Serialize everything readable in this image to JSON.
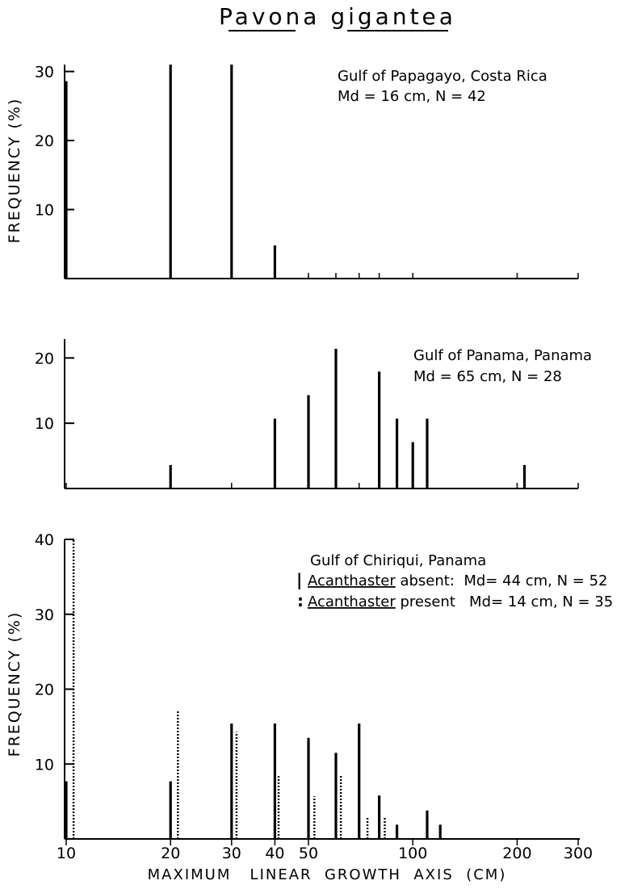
{
  "title": "Pavona gigantea",
  "chart_data": [
    {
      "type": "bar",
      "x_scale": "log",
      "annotations": [
        "Gulf of Papagayo, Costa Rica",
        "Md = 16 cm,  N = 42"
      ],
      "ylabel": "FREQUENCY  (%)",
      "yticks": [
        10,
        20,
        30
      ],
      "ylim": [
        0,
        33
      ],
      "xticks_minor": [
        10,
        20,
        30,
        40,
        50,
        60,
        70,
        80,
        100,
        200,
        300
      ],
      "series": [
        {
          "style": "solid",
          "x": [
            10,
            20,
            30,
            40
          ],
          "values": [
            28.6,
            31.0,
            31.0,
            4.8
          ]
        }
      ]
    },
    {
      "type": "bar",
      "x_scale": "log",
      "annotations": [
        "Gulf of Panama, Panama",
        "Md = 65 cm,  N = 28"
      ],
      "yticks": [
        10,
        20
      ],
      "ylim": [
        0,
        23
      ],
      "xticks_minor": [
        10,
        20,
        30,
        40,
        50,
        60,
        70,
        80,
        90,
        100,
        200,
        300
      ],
      "series": [
        {
          "style": "solid",
          "x": [
            20,
            40,
            50,
            60,
            80,
            90,
            100,
            110,
            210
          ],
          "values": [
            3.6,
            10.7,
            14.3,
            21.4,
            17.9,
            10.7,
            7.1,
            10.7,
            3.6
          ]
        }
      ]
    },
    {
      "type": "bar",
      "x_scale": "log",
      "annotations": [
        "Gulf of Chiriqui, Panama"
      ],
      "ylabel": "FREQUENCY  (%)",
      "xlabel": "MAXIMUM   LINEAR  GROWTH  AXIS  (CM)",
      "yticks": [
        10,
        20,
        30,
        40
      ],
      "ylim": [
        0,
        41
      ],
      "xticks": [
        10,
        20,
        30,
        40,
        50,
        100,
        200,
        300
      ],
      "xtick_labels": [
        "10",
        "20",
        "30",
        "40",
        "50",
        "100",
        "200",
        "300"
      ],
      "legend": [
        {
          "symbol": "|",
          "name": "Acanthaster",
          "text": " absent:  Md= 44 cm, N = 52"
        },
        {
          "symbol": ":",
          "name": "Acanthaster",
          "text": " present   Md= 14 cm, N = 35"
        }
      ],
      "series": [
        {
          "name": "Acanthaster absent",
          "style": "solid",
          "x": [
            10,
            20,
            30,
            40,
            50,
            60,
            70,
            80,
            90,
            110,
            120
          ],
          "values": [
            7.7,
            7.7,
            15.4,
            15.4,
            13.5,
            11.5,
            15.4,
            5.8,
            1.9,
            3.8,
            1.9
          ]
        },
        {
          "name": "Acanthaster present",
          "style": "dotted",
          "x": [
            10.5,
            21,
            31,
            41,
            52,
            62,
            74,
            83
          ],
          "values": [
            40.0,
            17.1,
            14.3,
            8.6,
            5.7,
            8.6,
            2.9,
            2.9
          ]
        }
      ]
    }
  ]
}
